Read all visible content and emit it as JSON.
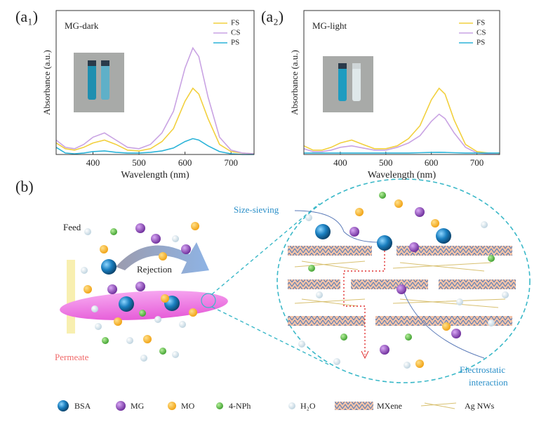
{
  "chart_data": [
    {
      "type": "line",
      "panel": "(a₁)",
      "label": "MG-dark",
      "xlabel": "Wavelength (nm)",
      "ylabel": "Absorbance (a.u.)",
      "x": [
        320,
        340,
        360,
        380,
        400,
        425,
        450,
        475,
        500,
        525,
        550,
        575,
        600,
        617,
        630,
        650,
        675,
        700,
        725,
        750
      ],
      "xlim": [
        320,
        750
      ],
      "xticks": [
        400,
        500,
        600,
        700
      ],
      "ylim": [
        0,
        1
      ],
      "series": [
        {
          "name": "FS",
          "color": "#f2d03e",
          "values": [
            0.08,
            0.04,
            0.03,
            0.05,
            0.08,
            0.1,
            0.07,
            0.03,
            0.025,
            0.04,
            0.09,
            0.18,
            0.37,
            0.46,
            0.42,
            0.25,
            0.07,
            0.02,
            0.01,
            0.005
          ]
        },
        {
          "name": "CS",
          "color": "#c9a3e3",
          "values": [
            0.1,
            0.05,
            0.04,
            0.07,
            0.12,
            0.15,
            0.1,
            0.05,
            0.04,
            0.07,
            0.15,
            0.3,
            0.6,
            0.74,
            0.68,
            0.4,
            0.12,
            0.03,
            0.01,
            0.005
          ]
        },
        {
          "name": "PS",
          "color": "#2ab3d8",
          "values": [
            0.05,
            0.01,
            0.005,
            0.01,
            0.02,
            0.025,
            0.015,
            0.01,
            0.01,
            0.015,
            0.025,
            0.045,
            0.09,
            0.11,
            0.1,
            0.06,
            0.02,
            0.005,
            0,
            0
          ]
        }
      ]
    },
    {
      "type": "line",
      "panel": "(a₂)",
      "label": "MG-light",
      "xlabel": "Wavelength (nm)",
      "ylabel": "Absorbance (a.u.)",
      "x": [
        320,
        340,
        360,
        380,
        400,
        425,
        450,
        475,
        500,
        525,
        550,
        575,
        600,
        617,
        630,
        650,
        675,
        700,
        725,
        750
      ],
      "xlim": [
        320,
        750
      ],
      "xticks": [
        400,
        500,
        600,
        700
      ],
      "ylim": [
        0,
        1
      ],
      "series": [
        {
          "name": "FS",
          "color": "#f2d03e",
          "values": [
            0.06,
            0.03,
            0.03,
            0.05,
            0.08,
            0.1,
            0.07,
            0.04,
            0.04,
            0.06,
            0.11,
            0.2,
            0.38,
            0.46,
            0.42,
            0.24,
            0.07,
            0.02,
            0.01,
            0.005
          ]
        },
        {
          "name": "CS",
          "color": "#c9a3e3",
          "values": [
            0.04,
            0.02,
            0.02,
            0.03,
            0.05,
            0.06,
            0.045,
            0.03,
            0.03,
            0.05,
            0.08,
            0.13,
            0.23,
            0.28,
            0.25,
            0.15,
            0.05,
            0.01,
            0.005,
            0
          ]
        },
        {
          "name": "PS",
          "color": "#2ab3d8",
          "values": [
            0.01,
            0.01,
            0.01,
            0.01,
            0.01,
            0.01,
            0.01,
            0.01,
            0.01,
            0.01,
            0.01,
            0.012,
            0.014,
            0.015,
            0.014,
            0.012,
            0.01,
            0.01,
            0.01,
            0.01
          ]
        }
      ]
    }
  ],
  "diagram": {
    "panel": "(b)",
    "feed": "Feed",
    "rejection": "Rejection",
    "permeate": "Permeate",
    "size_sieving": "Size-sieving",
    "electrostatic": [
      "Electrostatic",
      "interaction"
    ],
    "legend": [
      "BSA",
      "MG",
      "MO",
      "4-NPh",
      "H₂O",
      "MXene",
      "Ag NWs"
    ]
  }
}
